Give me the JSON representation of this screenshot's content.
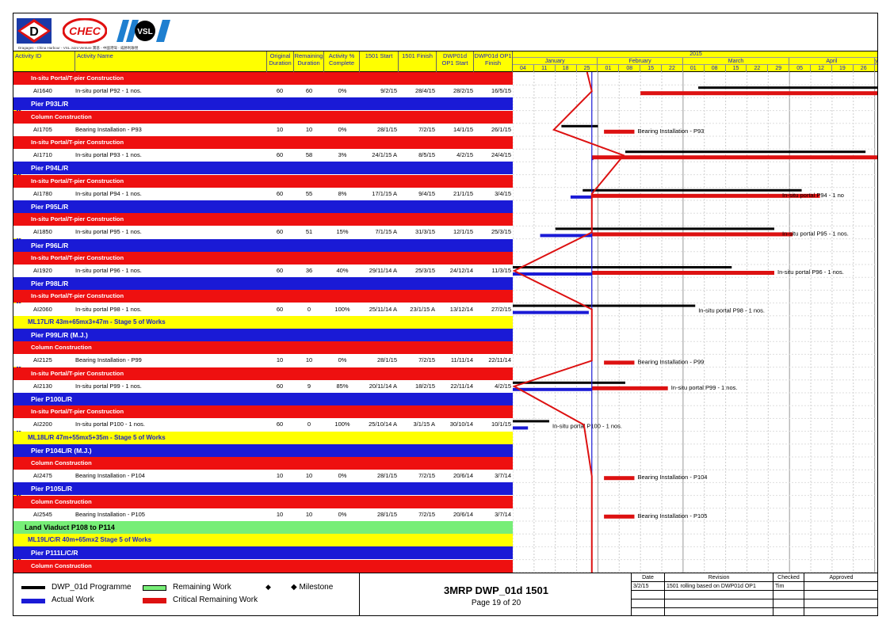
{
  "logos": {
    "caption": "Dragages - China Harbour - VSL Joint Venture 寶基 - 中國港灣 - 威勝利聯營",
    "d_mark": "D",
    "chec_mark": "CHEC",
    "vsl_mark": "VSL"
  },
  "header": {
    "activity_id": "Activity ID",
    "activity_name": "Activity Name",
    "orig_duration": "Original Duration",
    "rem_duration": "Remaining Duration",
    "pct_complete": "Activity % Complete",
    "start_1501": "1501 Start",
    "finish_1501": "1501 Finish",
    "op1_start": "DWP01d OP1 Start",
    "op1_finish": "DWP01d OP1 Finish",
    "year": "2015",
    "months": [
      "January",
      "February",
      "March",
      "April",
      "y"
    ],
    "weeks": [
      "04",
      "11",
      "18",
      "25",
      "01",
      "08",
      "15",
      "22",
      "01",
      "08",
      "15",
      "22",
      "29",
      "05",
      "12",
      "19",
      "26"
    ]
  },
  "rows": [
    {
      "type": "band-red",
      "label": "In-situ Portal/T-pier Construction"
    },
    {
      "type": "act",
      "id": "AI1640",
      "name": "In-situ portal P92 - 1 nos.",
      "od": "60",
      "rd": "60",
      "pc": "0%",
      "s": "9/2/15",
      "f": "28/4/15",
      "os": "28/2/15",
      "of": "16/5/15"
    },
    {
      "type": "band-blue",
      "label": "Pier P93L/R"
    },
    {
      "type": "band-red",
      "label": "Column Construction"
    },
    {
      "type": "act",
      "id": "AI1705",
      "name": "Bearing Installation - P93",
      "od": "10",
      "rd": "10",
      "pc": "0%",
      "s": "28/1/15",
      "f": "7/2/15",
      "os": "14/1/15",
      "of": "26/1/15"
    },
    {
      "type": "band-red",
      "label": "In-situ Portal/T-pier Construction"
    },
    {
      "type": "act",
      "id": "AI1710",
      "name": "In-situ portal P93 - 1 nos.",
      "od": "60",
      "rd": "58",
      "pc": "3%",
      "s": "24/1/15 A",
      "f": "8/5/15",
      "os": "4/2/15",
      "of": "24/4/15"
    },
    {
      "type": "band-blue",
      "label": "Pier P94L/R"
    },
    {
      "type": "band-red",
      "label": "In-situ Portal/T-pier Construction"
    },
    {
      "type": "act",
      "id": "AI1780",
      "name": "In-situ portal P94 - 1 nos.",
      "od": "60",
      "rd": "55",
      "pc": "8%",
      "s": "17/1/15 A",
      "f": "9/4/15",
      "os": "21/1/15",
      "of": "3/4/15"
    },
    {
      "type": "band-blue",
      "label": "Pier P95L/R"
    },
    {
      "type": "band-red",
      "label": "In-situ Portal/T-pier Construction"
    },
    {
      "type": "act",
      "id": "AI1850",
      "name": "In-situ portal P95 - 1 nos.",
      "od": "60",
      "rd": "51",
      "pc": "15%",
      "s": "7/1/15 A",
      "f": "31/3/15",
      "os": "12/1/15",
      "of": "25/3/15"
    },
    {
      "type": "band-blue",
      "label": "Pier P96L/R"
    },
    {
      "type": "band-red",
      "label": "In-situ Portal/T-pier Construction"
    },
    {
      "type": "act",
      "id": "AI1920",
      "name": "In-situ portal P96 - 1 nos.",
      "od": "60",
      "rd": "36",
      "pc": "40%",
      "s": "29/11/14 A",
      "f": "25/3/15",
      "os": "24/12/14",
      "of": "11/3/15"
    },
    {
      "type": "band-blue",
      "label": "Pier P98L/R"
    },
    {
      "type": "band-red",
      "label": "In-situ Portal/T-pier Construction"
    },
    {
      "type": "act",
      "id": "AI2060",
      "name": "In-situ portal P98 - 1 nos.",
      "od": "60",
      "rd": "0",
      "pc": "100%",
      "s": "25/11/14 A",
      "f": "23/1/15 A",
      "os": "13/12/14",
      "of": "27/2/15"
    },
    {
      "type": "band-yellow",
      "label": "ML17L/R 43m+65mx3+47m - Stage 5 of Works"
    },
    {
      "type": "band-blue",
      "label": "Pier P99L/R (M.J.)"
    },
    {
      "type": "band-red",
      "label": "Column Construction"
    },
    {
      "type": "act",
      "id": "AI2125",
      "name": "Bearing Installation - P99",
      "od": "10",
      "rd": "10",
      "pc": "0%",
      "s": "28/1/15",
      "f": "7/2/15",
      "os": "11/11/14",
      "of": "22/11/14"
    },
    {
      "type": "band-red",
      "label": "In-situ Portal/T-pier Construction"
    },
    {
      "type": "act",
      "id": "AI2130",
      "name": "In-situ portal P99 - 1 nos.",
      "od": "60",
      "rd": "9",
      "pc": "85%",
      "s": "20/11/14 A",
      "f": "18/2/15",
      "os": "22/11/14",
      "of": "4/2/15"
    },
    {
      "type": "band-blue",
      "label": "Pier P100L/R"
    },
    {
      "type": "band-red",
      "label": "In-situ Portal/T-pier Construction"
    },
    {
      "type": "act",
      "id": "AI2200",
      "name": "In-situ portal P100 - 1 nos.",
      "od": "60",
      "rd": "0",
      "pc": "100%",
      "s": "25/10/14 A",
      "f": "3/1/15 A",
      "os": "30/10/14",
      "of": "10/1/15"
    },
    {
      "type": "band-yellow",
      "label": "ML18L/R 47m+55mx5+35m - Stage 5 of Works"
    },
    {
      "type": "band-blue",
      "label": "Pier P104L/R (M.J.)"
    },
    {
      "type": "band-red",
      "label": "Column Construction"
    },
    {
      "type": "act",
      "id": "AI2475",
      "name": "Bearing Installation - P104",
      "od": "10",
      "rd": "10",
      "pc": "0%",
      "s": "28/1/15",
      "f": "7/2/15",
      "os": "20/6/14",
      "of": "3/7/14"
    },
    {
      "type": "band-blue",
      "label": "Pier P105L/R"
    },
    {
      "type": "band-red",
      "label": "Column Construction"
    },
    {
      "type": "act",
      "id": "AI2545",
      "name": "Bearing Installation - P105",
      "od": "10",
      "rd": "10",
      "pc": "0%",
      "s": "28/1/15",
      "f": "7/2/15",
      "os": "20/6/14",
      "of": "3/7/14"
    },
    {
      "type": "band-green",
      "label": "Land Viaduct P108 to P114"
    },
    {
      "type": "band-yellow",
      "label": "ML19L/C/R 40m+65mx2 Stage 5 of Works"
    },
    {
      "type": "band-blue",
      "label": "Pier P111L/C/R"
    },
    {
      "type": "band-red",
      "label": "Column Construction"
    }
  ],
  "bar_labels": {
    "p93_bearing": "Bearing Installation - P93",
    "p94": "In-situ portal P94 - 1 no",
    "p95": "In-situ portal P95 - 1 nos.",
    "p96": "In-situ portal P96 - 1 nos.",
    "p98": "In-situ portal P98 - 1 nos.",
    "p99_bearing": "Bearing Installation - P99",
    "p99": "In-situ portal P99 - 1 nos.",
    "p100": "In-situ portal P100 - 1 nos.",
    "p104": "Bearing Installation - P104",
    "p105": "Bearing Installation - P105"
  },
  "legend": {
    "programme": "DWP_01d Programme",
    "actual": "Actual Work",
    "remaining": "Remaining Work",
    "critical": "Critical Remaining Work",
    "milestone": "◆ Milestone",
    "milestone_diamond": "◆"
  },
  "title_block": {
    "title": "3MRP DWP_01d 1501",
    "page": "Page 19 of 20"
  },
  "revision": {
    "headers": [
      "Date",
      "Revision",
      "Checked",
      "Approved"
    ],
    "rows": [
      [
        "3/2/15",
        "1501 rolling based on DWP01d OP1",
        "Tim",
        ""
      ]
    ]
  },
  "colors": {
    "band_red": "#ee1010",
    "band_blue": "#1a1ad6",
    "band_yellow": "#ffff00",
    "band_green": "#77ee77",
    "critical": "#dd1111",
    "actual": "#1a1ad6"
  }
}
